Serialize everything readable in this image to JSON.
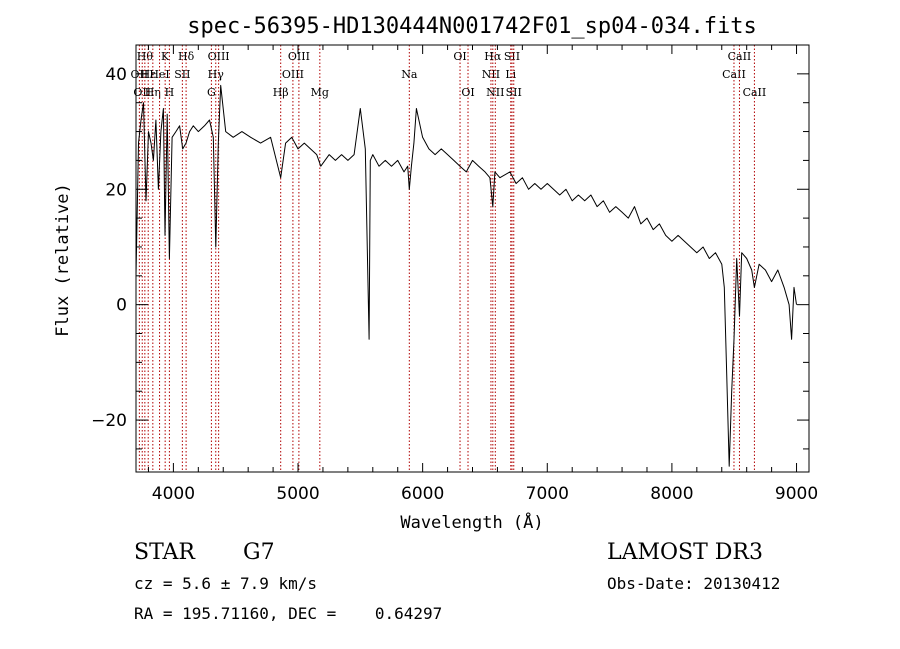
{
  "chart_data": {
    "type": "line",
    "title": "spec-56395-HD130444N001742F01_sp04-034.fits",
    "xlabel": "Wavelength (Å)",
    "ylabel": "Flux (relative)",
    "xlim": [
      3700,
      9100
    ],
    "ylim": [
      -29,
      45
    ],
    "xticks": [
      4000,
      5000,
      6000,
      7000,
      8000,
      9000
    ],
    "yticks": [
      -20,
      0,
      20,
      40
    ],
    "ytick_labels": [
      "−20",
      "0",
      "20",
      "40"
    ],
    "grid": false,
    "series": [
      {
        "name": "spectrum",
        "x": [
          3700,
          3720,
          3740,
          3760,
          3780,
          3800,
          3820,
          3840,
          3860,
          3880,
          3900,
          3920,
          3933,
          3950,
          3968,
          3990,
          4020,
          4050,
          4075,
          4101,
          4130,
          4160,
          4200,
          4250,
          4290,
          4320,
          4340,
          4360,
          4380,
          4420,
          4480,
          4550,
          4620,
          4700,
          4780,
          4861,
          4900,
          4950,
          5000,
          5050,
          5100,
          5150,
          5183,
          5250,
          5300,
          5350,
          5400,
          5450,
          5500,
          5540,
          5570,
          5580,
          5600,
          5650,
          5700,
          5750,
          5800,
          5850,
          5880,
          5893,
          5910,
          5930,
          5950,
          6000,
          6050,
          6100,
          6150,
          6200,
          6250,
          6300,
          6350,
          6400,
          6450,
          6500,
          6540,
          6563,
          6580,
          6620,
          6700,
          6750,
          6800,
          6850,
          6900,
          6950,
          7000,
          7050,
          7100,
          7150,
          7200,
          7250,
          7300,
          7350,
          7400,
          7450,
          7500,
          7550,
          7600,
          7650,
          7700,
          7750,
          7800,
          7850,
          7900,
          7950,
          8000,
          8050,
          8100,
          8150,
          8200,
          8250,
          8300,
          8350,
          8400,
          8420,
          8440,
          8460,
          8480,
          8498,
          8520,
          8542,
          8560,
          8600,
          8640,
          8662,
          8700,
          8750,
          8800,
          8850,
          8900,
          8940,
          8960,
          8980,
          9000
        ],
        "y": [
          5,
          28,
          32,
          35,
          18,
          30,
          28,
          25,
          32,
          20,
          30,
          34,
          12,
          33,
          8,
          29,
          30,
          31,
          27,
          28,
          30,
          31,
          30,
          31,
          32,
          29,
          10,
          28,
          38,
          30,
          29,
          30,
          29,
          28,
          29,
          22,
          28,
          29,
          27,
          28,
          27,
          26,
          24,
          26,
          25,
          26,
          25,
          26,
          34,
          27,
          -6,
          25,
          26,
          24,
          25,
          24,
          25,
          23,
          24,
          20,
          24,
          28,
          34,
          29,
          27,
          26,
          27,
          26,
          25,
          24,
          23,
          25,
          24,
          23,
          22,
          17,
          23,
          22,
          23,
          21,
          22,
          20,
          21,
          20,
          21,
          20,
          19,
          20,
          18,
          19,
          18,
          19,
          17,
          18,
          16,
          17,
          16,
          15,
          17,
          14,
          15,
          13,
          14,
          12,
          11,
          12,
          11,
          10,
          9,
          10,
          8,
          9,
          7,
          3,
          -12,
          -28,
          -15,
          -6,
          8,
          -2,
          9,
          8,
          6,
          3,
          7,
          6,
          4,
          6,
          3,
          0,
          -6,
          3,
          0
        ]
      }
    ],
    "line_markers": [
      {
        "x": 3727,
        "label": "OII",
        "row": 1
      },
      {
        "x": 3750,
        "label": "OII",
        "row": 2
      },
      {
        "x": 3771,
        "label": "Hθ",
        "row": 0
      },
      {
        "x": 3798,
        "label": "Hε",
        "row": 1
      },
      {
        "x": 3835,
        "label": "Hη",
        "row": 2
      },
      {
        "x": 3889,
        "label": "HeI",
        "row": 1
      },
      {
        "x": 3934,
        "label": "K",
        "row": 0
      },
      {
        "x": 3968,
        "label": "H",
        "row": 2
      },
      {
        "x": 4072,
        "label": "SII",
        "row": 1
      },
      {
        "x": 4102,
        "label": "Hδ",
        "row": 0
      },
      {
        "x": 4305,
        "label": "G",
        "row": 2
      },
      {
        "x": 4340,
        "label": "Hγ",
        "row": 1
      },
      {
        "x": 4363,
        "label": "OIII",
        "row": 0
      },
      {
        "x": 4861,
        "label": "Hβ",
        "row": 2
      },
      {
        "x": 4959,
        "label": "OIII",
        "row": 1
      },
      {
        "x": 5007,
        "label": "OIII",
        "row": 0
      },
      {
        "x": 5175,
        "label": "Mg",
        "row": 2
      },
      {
        "x": 5893,
        "label": "Na",
        "row": 1
      },
      {
        "x": 6300,
        "label": "OI",
        "row": 0
      },
      {
        "x": 6364,
        "label": "OI",
        "row": 2
      },
      {
        "x": 6548,
        "label": "NII",
        "row": 1
      },
      {
        "x": 6563,
        "label": "Hα",
        "row": 0
      },
      {
        "x": 6583,
        "label": "NII",
        "row": 2
      },
      {
        "x": 6707,
        "label": "Li",
        "row": 1
      },
      {
        "x": 6717,
        "label": "SII",
        "row": 0
      },
      {
        "x": 6731,
        "label": "SII",
        "row": 2
      },
      {
        "x": 8498,
        "label": "CaII",
        "row": 1
      },
      {
        "x": 8542,
        "label": "CaII",
        "row": 0
      },
      {
        "x": 8662,
        "label": "CaII",
        "row": 2
      }
    ]
  },
  "info": {
    "class_label": "STAR",
    "subclass": "G7",
    "survey": "LAMOST DR3",
    "redshift": "cz = 5.6 ± 7.9 km/s",
    "obs_date": "Obs-Date: 20130412",
    "coords": "RA = 195.71160, DEC =    0.64297"
  },
  "colors": {
    "spectrum": "#000000",
    "marker_line": "#b00000",
    "axis": "#000000",
    "background": "#ffffff"
  }
}
